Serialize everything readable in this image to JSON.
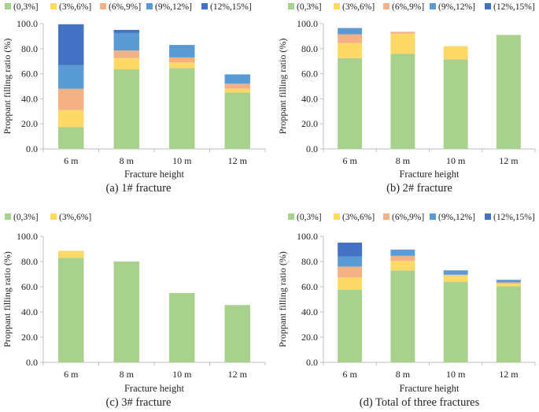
{
  "colors": {
    "series": [
      "#a9d18e",
      "#ffd966",
      "#f4b183",
      "#5b9bd5",
      "#4472c4"
    ],
    "axis": "#bfbfbf",
    "text": "#222222"
  },
  "chart_data": [
    {
      "type": "bar",
      "stacked": true,
      "caption": "(a) 1# fracture",
      "xlabel": "Fracture height",
      "ylabel": "Proppant filling ratio (%)",
      "ylim": [
        0,
        100
      ],
      "yticks": [
        "0.0",
        "20.0",
        "40.0",
        "60.0",
        "80.0",
        "100.0"
      ],
      "categories": [
        "6 m",
        "8 m",
        "10 m",
        "12 m"
      ],
      "legend": [
        "(0,3%]",
        "(3%,6%]",
        "(6%,9%]",
        "(9%,12%]",
        "(12%,15%]"
      ],
      "series": [
        {
          "name": "(0,3%]",
          "values": [
            17.5,
            63.5,
            64.5,
            45
          ]
        },
        {
          "name": "(3%,6%]",
          "values": [
            13.5,
            9,
            4.5,
            3
          ]
        },
        {
          "name": "(6%,9%]",
          "values": [
            17,
            6,
            4,
            4
          ]
        },
        {
          "name": "(9%,12%]",
          "values": [
            19,
            14,
            10,
            7.5
          ]
        },
        {
          "name": "(12%,15%]",
          "values": [
            32.5,
            2.5,
            0,
            0
          ]
        }
      ]
    },
    {
      "type": "bar",
      "stacked": true,
      "caption": "(b) 2# fracture",
      "xlabel": "Fracture height",
      "ylabel": "Proppant filling ratio (%)",
      "ylim": [
        0,
        100
      ],
      "yticks": [
        "0.0",
        "20.0",
        "40.0",
        "60.0",
        "80.0",
        "100.0"
      ],
      "categories": [
        "6 m",
        "8 m",
        "10 m",
        "12 m"
      ],
      "legend": [
        "(0,3%]",
        "(3%,6%]",
        "(6%,9%]",
        "(9%,12%]",
        "(12%,15%]"
      ],
      "series": [
        {
          "name": "(0,3%]",
          "values": [
            72.5,
            76,
            71.5,
            91
          ]
        },
        {
          "name": "(3%,6%]",
          "values": [
            12,
            16,
            10.5,
            0
          ]
        },
        {
          "name": "(6%,9%]",
          "values": [
            7,
            1.5,
            0,
            0
          ]
        },
        {
          "name": "(9%,12%]",
          "values": [
            5,
            0,
            0,
            0
          ]
        },
        {
          "name": "(12%,15%]",
          "values": [
            0,
            0,
            0,
            0
          ]
        }
      ]
    },
    {
      "type": "bar",
      "stacked": true,
      "caption": "(c) 3# fracture",
      "xlabel": "Fracture height",
      "ylabel": "Proppant filling ratio (%)",
      "ylim": [
        0,
        100
      ],
      "yticks": [
        "0.0",
        "20.0",
        "40.0",
        "60.0",
        "80.0",
        "100.0"
      ],
      "categories": [
        "6 m",
        "8 m",
        "10 m",
        "12 m"
      ],
      "legend": [
        "(0,3%]",
        "(3%,6%]"
      ],
      "series": [
        {
          "name": "(0,3%]",
          "values": [
            83,
            80,
            55,
            45.5
          ]
        },
        {
          "name": "(3%,6%]",
          "values": [
            5.5,
            0,
            0,
            0
          ]
        }
      ]
    },
    {
      "type": "bar",
      "stacked": true,
      "caption": "(d) Total of three fractures",
      "xlabel": "Fracture height",
      "ylabel": "Proppant filling ratio (%)",
      "ylim": [
        0,
        100
      ],
      "yticks": [
        "0.0",
        "20.0",
        "40.0",
        "60.0",
        "80.0",
        "100.0"
      ],
      "categories": [
        "6 m",
        "8 m",
        "10 m",
        "12 m"
      ],
      "legend": [
        "(0,3%]",
        "(3%,6%]",
        "(6%,9%]",
        "(9%,12%]",
        "(12%,15%]"
      ],
      "series": [
        {
          "name": "(0,3%]",
          "values": [
            57.5,
            73,
            64,
            60.5
          ]
        },
        {
          "name": "(3%,6%]",
          "values": [
            10,
            7.5,
            5.5,
            2
          ]
        },
        {
          "name": "(6%,9%]",
          "values": [
            8.5,
            4,
            0,
            1
          ]
        },
        {
          "name": "(9%,12%]",
          "values": [
            8,
            5,
            3.5,
            2
          ]
        },
        {
          "name": "(12%,15%]",
          "values": [
            11,
            0,
            0,
            0
          ]
        }
      ]
    }
  ]
}
